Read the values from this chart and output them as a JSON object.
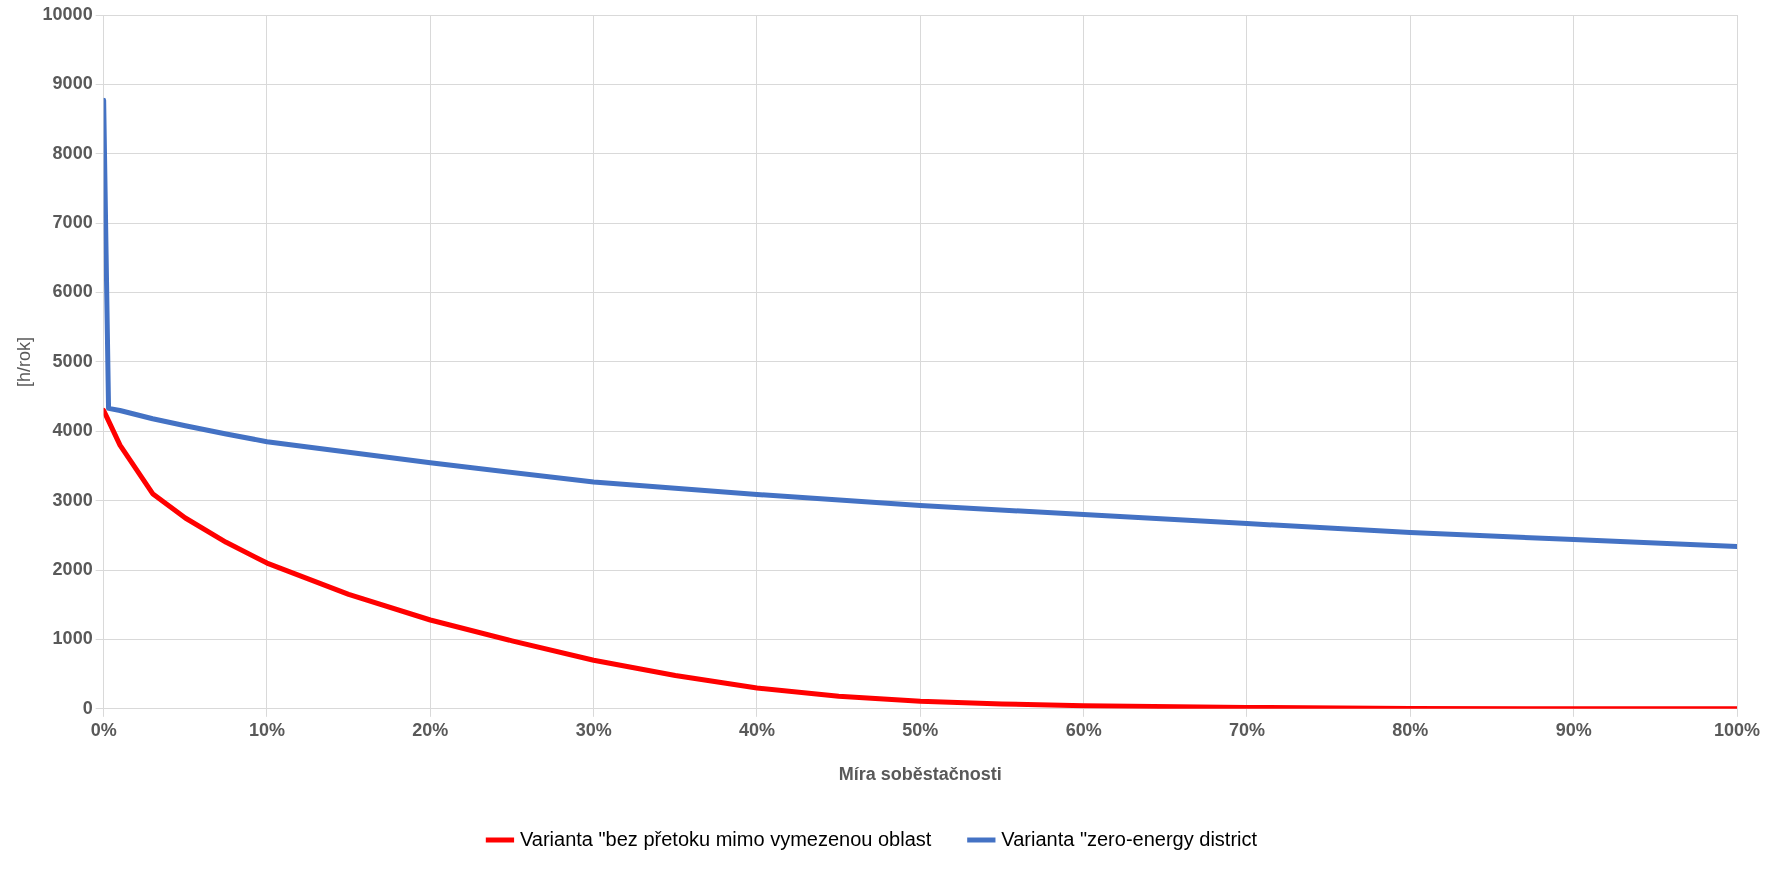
{
  "chart_data": {
    "type": "line",
    "xlabel": "Míra soběstačnosti",
    "ylabel": "[h/rok]",
    "xlim": [
      0,
      100
    ],
    "xticks": [
      {
        "value": 0,
        "label": "0%"
      },
      {
        "value": 10,
        "label": "10%"
      },
      {
        "value": 20,
        "label": "20%"
      },
      {
        "value": 30,
        "label": "30%"
      },
      {
        "value": 40,
        "label": "40%"
      },
      {
        "value": 50,
        "label": "50%"
      },
      {
        "value": 60,
        "label": "60%"
      },
      {
        "value": 70,
        "label": "70%"
      },
      {
        "value": 80,
        "label": "80%"
      },
      {
        "value": 90,
        "label": "90%"
      },
      {
        "value": 100,
        "label": "100%"
      }
    ],
    "ylim": [
      0,
      10000
    ],
    "yticks": [
      0,
      1000,
      2000,
      3000,
      4000,
      5000,
      6000,
      7000,
      8000,
      9000,
      10000
    ],
    "grid": true,
    "legend": "bottom",
    "marker": "none",
    "line_style": "solid",
    "series": [
      {
        "name": "Varianta \"bez přetoku mimo vymezenou oblast",
        "color": "#ff0000",
        "x": [
          0,
          0.2,
          1,
          2,
          3,
          5,
          7.5,
          10,
          15,
          20,
          25,
          30,
          35,
          40,
          45,
          50,
          55,
          60,
          70,
          80,
          90,
          100
        ],
        "values": [
          4300,
          4200,
          3800,
          3450,
          3100,
          2750,
          2400,
          2100,
          1650,
          1280,
          980,
          700,
          480,
          300,
          180,
          110,
          70,
          45,
          20,
          5,
          0,
          0
        ]
      },
      {
        "name": "Varianta \"zero-energy district",
        "color": "#4472c4",
        "x": [
          0,
          0.3,
          1,
          3,
          5,
          7.5,
          10,
          20,
          30,
          40,
          50,
          60,
          70,
          80,
          90,
          100
        ],
        "values": [
          8770,
          4330,
          4300,
          4180,
          4080,
          3960,
          3850,
          3545,
          3270,
          3090,
          2930,
          2800,
          2670,
          2540,
          2440,
          2340
        ]
      }
    ]
  }
}
